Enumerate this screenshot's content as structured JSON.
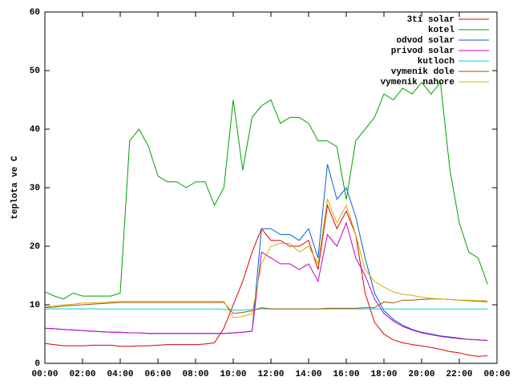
{
  "chart_data": {
    "type": "line",
    "ylabel": "teplota ve C",
    "x": [
      0,
      0.5,
      1,
      1.5,
      2,
      2.5,
      3,
      3.5,
      4,
      4.5,
      5,
      5.5,
      6,
      6.5,
      7,
      7.5,
      8,
      8.5,
      9,
      9.5,
      10,
      10.5,
      11,
      11.5,
      12,
      12.5,
      13,
      13.5,
      14,
      14.5,
      15,
      15.5,
      16,
      16.5,
      17,
      17.5,
      18,
      18.5,
      19,
      19.5,
      20,
      20.5,
      21,
      21.5,
      22,
      22.5,
      23,
      23.5
    ],
    "xlim": [
      0,
      24
    ],
    "xticks": [
      {
        "value": 0,
        "label": "00:00"
      },
      {
        "value": 2,
        "label": "02:00"
      },
      {
        "value": 4,
        "label": "04:00"
      },
      {
        "value": 6,
        "label": "06:00"
      },
      {
        "value": 8,
        "label": "08:00"
      },
      {
        "value": 10,
        "label": "10:00"
      },
      {
        "value": 12,
        "label": "12:00"
      },
      {
        "value": 14,
        "label": "14:00"
      },
      {
        "value": 16,
        "label": "16:00"
      },
      {
        "value": 18,
        "label": "18:00"
      },
      {
        "value": 20,
        "label": "20:00"
      },
      {
        "value": 22,
        "label": "22:00"
      },
      {
        "value": 24,
        "label": "00:00"
      }
    ],
    "ylim": [
      0,
      60
    ],
    "yticks": [
      0,
      10,
      20,
      30,
      40,
      50,
      60
    ],
    "legend": "top-right",
    "series": [
      {
        "name": "3ti solar",
        "color": "#e00000",
        "values": [
          3.4,
          3.2,
          3,
          3,
          3,
          3.1,
          3.1,
          3.1,
          2.9,
          2.9,
          3,
          3,
          3.1,
          3.2,
          3.2,
          3.2,
          3.2,
          3.3,
          3.5,
          6,
          10,
          14,
          19,
          23,
          21,
          21,
          20,
          20,
          21,
          16,
          27,
          23,
          26,
          22,
          12,
          7,
          5,
          4,
          3.5,
          3.2,
          3,
          2.7,
          2.4,
          2,
          1.8,
          1.4,
          1.2,
          1.3
        ]
      },
      {
        "name": "kotel",
        "color": "#00a000",
        "values": [
          12.2,
          11.5,
          11,
          12,
          11.5,
          11.5,
          11.5,
          11.5,
          12,
          38,
          40,
          37,
          32,
          31,
          31,
          30,
          31,
          31,
          27,
          30,
          45,
          33,
          42,
          44,
          45,
          41,
          42,
          42,
          41,
          38,
          38,
          37,
          28,
          38,
          40,
          42,
          46,
          45,
          47,
          46,
          48,
          46,
          48,
          33,
          24,
          19,
          18,
          13.5
        ]
      },
      {
        "name": "odvod solar",
        "color": "#0060e0",
        "values": [
          6,
          5.9,
          5.8,
          5.7,
          5.6,
          5.5,
          5.4,
          5.3,
          5.3,
          5.2,
          5.2,
          5.1,
          5.1,
          5.1,
          5.1,
          5.1,
          5.1,
          5.1,
          5.1,
          5.1,
          5.2,
          5.3,
          5.5,
          23,
          23,
          22,
          22,
          21,
          23,
          18,
          34,
          28,
          30,
          25,
          18,
          12,
          9,
          7.5,
          6.5,
          5.8,
          5.3,
          5,
          4.7,
          4.5,
          4.3,
          4.1,
          4,
          3.9
        ]
      },
      {
        "name": "privod solar",
        "color": "#c000c0",
        "values": [
          6,
          5.9,
          5.8,
          5.7,
          5.6,
          5.5,
          5.4,
          5.3,
          5.3,
          5.2,
          5.2,
          5.1,
          5.1,
          5.1,
          5.1,
          5.1,
          5.1,
          5.1,
          5.1,
          5.1,
          5.2,
          5.3,
          5.5,
          19,
          18,
          17,
          17,
          16,
          17,
          14,
          22,
          20,
          24,
          18,
          15,
          11,
          8.5,
          7.2,
          6.3,
          5.7,
          5.2,
          4.9,
          4.6,
          4.4,
          4.2,
          4.1,
          4,
          3.9
        ]
      },
      {
        "name": "kutloch",
        "color": "#00d0d0",
        "values": [
          9.3,
          9.3,
          9.3,
          9.3,
          9.3,
          9.3,
          9.3,
          9.3,
          9.3,
          9.3,
          9.3,
          9.3,
          9.3,
          9.3,
          9.3,
          9.3,
          9.3,
          9.3,
          9.3,
          9.2,
          9.1,
          9.1,
          9.2,
          9.3,
          9.3,
          9.3,
          9.3,
          9.3,
          9.3,
          9.3,
          9.3,
          9.3,
          9.3,
          9.3,
          9.3,
          9.3,
          9.3,
          9.3,
          9.3,
          9.3,
          9.3,
          9.3,
          9.3,
          9.3,
          9.3,
          9.3,
          9.3,
          9.3
        ]
      },
      {
        "name": "vymenik dole",
        "color": "#a05000",
        "values": [
          9.5,
          9.6,
          9.8,
          9.9,
          10,
          10.1,
          10.2,
          10.3,
          10.4,
          10.4,
          10.4,
          10.4,
          10.4,
          10.4,
          10.4,
          10.4,
          10.4,
          10.4,
          10.4,
          10.4,
          8.5,
          8.7,
          9,
          9.5,
          9.3,
          9.3,
          9.3,
          9.3,
          9.3,
          9.3,
          9.4,
          9.4,
          9.4,
          9.4,
          9.5,
          9.5,
          10.5,
          10.3,
          10.8,
          10.8,
          10.9,
          11,
          11,
          10.9,
          10.8,
          10.7,
          10.6,
          10.5
        ]
      },
      {
        "name": "vymenik nahore",
        "color": "#d0b000",
        "values": [
          9.7,
          9.8,
          10,
          10.1,
          10.3,
          10.3,
          10.4,
          10.5,
          10.6,
          10.6,
          10.6,
          10.6,
          10.6,
          10.6,
          10.6,
          10.6,
          10.6,
          10.6,
          10.6,
          10.6,
          7.8,
          8,
          8.5,
          17,
          20,
          20.5,
          20.5,
          19,
          20,
          17,
          28,
          24,
          27,
          22,
          16,
          14,
          13,
          12.2,
          11.8,
          11.6,
          11.3,
          11.1,
          11,
          10.9,
          10.8,
          10.8,
          10.7,
          10.7
        ]
      }
    ]
  }
}
